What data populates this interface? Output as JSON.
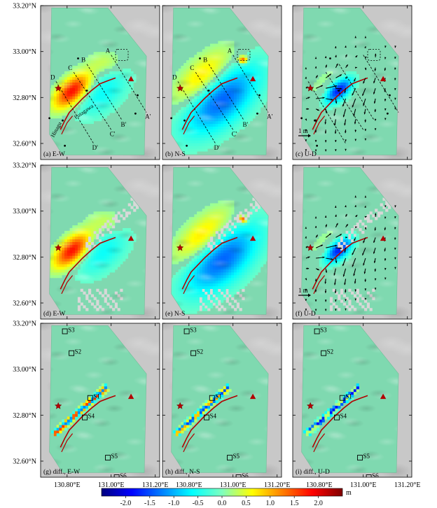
{
  "chart_data": {
    "type": "heatmap",
    "lat_labels": [
      "33.20°N",
      "33.00°N",
      "32.80°N",
      "32.60°N"
    ],
    "lat_values": [
      33.2,
      33.0,
      32.8,
      32.6
    ],
    "lon_labels": [
      "130.80°E",
      "131.00°E",
      "131.20°E"
    ],
    "lon_values": [
      130.8,
      131.0,
      131.2
    ],
    "xlim": [
      130.68,
      131.22
    ],
    "ylim": [
      32.53,
      33.2
    ],
    "panels": [
      {
        "label": "(a) E-W",
        "field": "ew",
        "arrows": false,
        "profiles": true,
        "sites": false
      },
      {
        "label": "(b) N-S",
        "field": "ns",
        "arrows": false,
        "profiles": true,
        "sites": false
      },
      {
        "label": "(c) U-D",
        "field": "ud",
        "arrows": true,
        "profiles": true,
        "sites": false
      },
      {
        "label": "(d) E-W",
        "field": "ew2",
        "arrows": false,
        "profiles": false,
        "sites": false
      },
      {
        "label": "(e) N-S",
        "field": "ns2",
        "arrows": false,
        "profiles": false,
        "sites": false
      },
      {
        "label": "(f) U-D",
        "field": "ud2",
        "arrows": true,
        "profiles": false,
        "sites": false
      },
      {
        "label": "(g) diff., E-W",
        "field": "dew",
        "arrows": false,
        "profiles": false,
        "sites": true
      },
      {
        "label": "(h) diff., N-S",
        "field": "dns",
        "arrows": false,
        "profiles": false,
        "sites": true
      },
      {
        "label": "(i) diff., U-D",
        "field": "dud",
        "arrows": false,
        "profiles": false,
        "sites": true
      }
    ],
    "profiles": [
      {
        "start": "A",
        "end": "A'"
      },
      {
        "start": "B",
        "end": "B'"
      },
      {
        "start": "C",
        "end": "C'"
      },
      {
        "start": "D",
        "end": "D'"
      }
    ],
    "fault_labels": [
      "Hinagu",
      "Futagawa"
    ],
    "sites": [
      {
        "name": "S3",
        "lon": 130.79,
        "lat": 33.165
      },
      {
        "name": "S2",
        "lon": 130.82,
        "lat": 33.07
      },
      {
        "name": "S1",
        "lon": 130.905,
        "lat": 32.875
      },
      {
        "name": "S4",
        "lon": 130.88,
        "lat": 32.79
      },
      {
        "name": "S5",
        "lon": 130.985,
        "lat": 32.615
      },
      {
        "name": "S6",
        "lon": 131.025,
        "lat": 32.53
      }
    ],
    "epicenter": {
      "lon": 130.76,
      "lat": 32.84
    },
    "volcano": {
      "lon": 131.09,
      "lat": 32.88
    },
    "scale_arrow_label": "1 m",
    "colorbar": {
      "ticks": [
        -2.0,
        -1.5,
        -1.0,
        -0.5,
        0.0,
        0.5,
        1.0,
        1.5,
        2.0
      ],
      "tick_labels": [
        "-2.0",
        "-1.5",
        "-1.0",
        "-0.5",
        "0.0",
        "0.5",
        "1.0",
        "1.5",
        "2.0"
      ],
      "range": [
        -2.5,
        2.5
      ],
      "unit": "m",
      "colors": [
        "#00007f",
        "#0000ff",
        "#007fff",
        "#00ffff",
        "#7fffbf",
        "#ffff00",
        "#ff7f00",
        "#ff0000",
        "#7f0000"
      ]
    },
    "base_color": "#7fd9b0",
    "outside_color": "#c8c8c8",
    "marker_color": "#b20000",
    "fault_color": "#b20000"
  }
}
